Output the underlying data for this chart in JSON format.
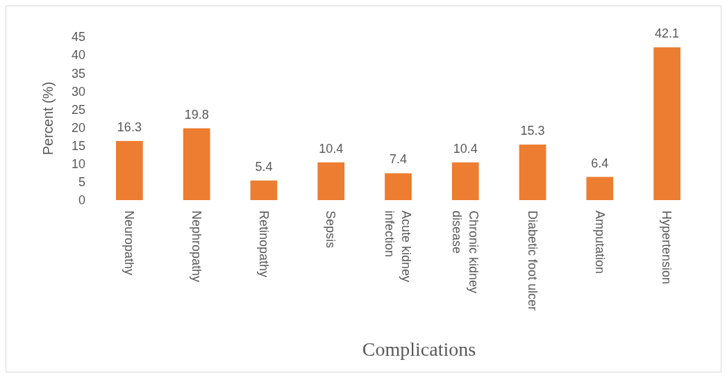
{
  "chart_data": {
    "type": "bar",
    "xlabel": "Complications",
    "ylabel": "Percent (%)",
    "categories": [
      "Neuropathy",
      "Nephropathy",
      "Retinopathy",
      "Sepsis",
      "Acute kidney infection",
      "Chronic kidney disease",
      "Diabetic foot ulcer",
      "Amputation",
      "Hypertension"
    ],
    "values": [
      16.3,
      19.8,
      5.4,
      10.4,
      7.4,
      10.4,
      15.3,
      6.4,
      42.1
    ],
    "color": "#ed7d31",
    "ylim": [
      0,
      45
    ],
    "yticks": [
      0,
      5,
      10,
      15,
      20,
      25,
      30,
      35,
      40,
      45
    ],
    "data_labels": true
  }
}
